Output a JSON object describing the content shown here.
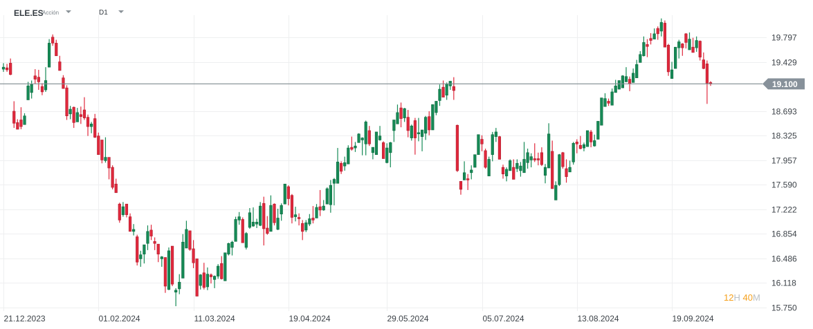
{
  "header": {
    "symbol": "ELE.ES",
    "instrument_type": "Acción",
    "timeframe": "D1"
  },
  "countdown": {
    "hours": "12",
    "hours_unit": "H",
    "minutes": "40",
    "minutes_unit": "M"
  },
  "colors": {
    "up": "#168a56",
    "up_border": "#0e6b40",
    "down": "#e0283c",
    "down_border": "#b01e2e",
    "price_line": "#7d8a8f",
    "price_tag": "#87919a",
    "countdown": "#f5a01c"
  },
  "chart_data": {
    "type": "candlestick",
    "symbol": "ELE.ES",
    "timeframe": "D1",
    "ylim": [
      15.75,
      20.1
    ],
    "y_ticks": [
      "19.797",
      "19.429",
      "18.693",
      "18.325",
      "17.957",
      "17.590",
      "17.222",
      "16.854",
      "16.486",
      "16.118",
      "15.750"
    ],
    "y_tick_values": [
      19.797,
      19.429,
      18.693,
      18.325,
      17.957,
      17.59,
      17.222,
      16.854,
      16.486,
      16.118,
      15.75
    ],
    "current_price": 19.1,
    "current_price_label": "19.100",
    "x_ticks": [
      {
        "label": "21.12.2023",
        "index": 0
      },
      {
        "label": "01.02.2024",
        "index": 27
      },
      {
        "label": "11.03.2024",
        "index": 54
      },
      {
        "label": "19.04.2024",
        "index": 81
      },
      {
        "label": "29.05.2024",
        "index": 109
      },
      {
        "label": "05.07.2024",
        "index": 136
      },
      {
        "label": "13.08.2024",
        "index": 163
      },
      {
        "label": "19.09.2024",
        "index": 190
      }
    ],
    "grid": true,
    "ohlc_fields": [
      "open",
      "high",
      "low",
      "close"
    ],
    "candles": [
      [
        19.32,
        19.41,
        19.28,
        19.35
      ],
      [
        19.34,
        19.4,
        19.28,
        19.31
      ],
      [
        19.41,
        19.48,
        19.23,
        19.24
      ],
      [
        18.69,
        18.84,
        18.44,
        18.51
      ],
      [
        18.52,
        18.57,
        18.42,
        18.42
      ],
      [
        18.56,
        18.75,
        18.42,
        18.46
      ],
      [
        18.49,
        18.66,
        18.49,
        18.62
      ],
      [
        18.86,
        19.13,
        18.86,
        19.07
      ],
      [
        18.97,
        19.15,
        18.88,
        19.09
      ],
      [
        19.22,
        19.32,
        19.1,
        19.17
      ],
      [
        19.2,
        19.31,
        19.01,
        19.13
      ],
      [
        19.06,
        19.11,
        18.93,
        18.98
      ],
      [
        19.01,
        19.35,
        18.98,
        19.15
      ],
      [
        19.35,
        19.77,
        19.35,
        19.71
      ],
      [
        19.8,
        19.84,
        19.67,
        19.71
      ],
      [
        19.71,
        19.76,
        19.52,
        19.52
      ],
      [
        19.43,
        19.52,
        19.3,
        19.3
      ],
      [
        19.19,
        19.23,
        19.03,
        19.03
      ],
      [
        19.04,
        19.08,
        18.56,
        18.62
      ],
      [
        18.65,
        18.77,
        18.57,
        18.72
      ],
      [
        18.75,
        18.76,
        18.44,
        18.52
      ],
      [
        18.53,
        18.74,
        18.53,
        18.67
      ],
      [
        18.64,
        18.76,
        18.5,
        18.61
      ],
      [
        18.71,
        18.9,
        18.56,
        18.59
      ],
      [
        18.6,
        18.64,
        18.32,
        18.46
      ],
      [
        18.46,
        18.53,
        18.36,
        18.5
      ],
      [
        18.58,
        18.65,
        18.29,
        18.3
      ],
      [
        18.32,
        18.37,
        18.04,
        18.04
      ],
      [
        18.26,
        18.26,
        17.91,
        17.96
      ],
      [
        17.95,
        18.3,
        17.92,
        18.0
      ],
      [
        18.0,
        18.0,
        17.67,
        17.84
      ],
      [
        17.85,
        17.88,
        17.52,
        17.55
      ],
      [
        17.6,
        17.68,
        17.47,
        17.47
      ],
      [
        17.3,
        17.32,
        17.02,
        17.06
      ],
      [
        17.14,
        17.33,
        17.11,
        17.26
      ],
      [
        17.3,
        17.3,
        17.1,
        17.14
      ],
      [
        17.11,
        17.16,
        16.89,
        16.89
      ],
      [
        16.89,
        17.0,
        16.83,
        16.92
      ],
      [
        16.81,
        16.84,
        16.38,
        16.43
      ],
      [
        16.48,
        16.6,
        16.36,
        16.54
      ],
      [
        16.55,
        16.69,
        16.41,
        16.69
      ],
      [
        16.71,
        16.98,
        16.61,
        16.89
      ],
      [
        16.91,
        16.99,
        16.76,
        16.82
      ],
      [
        16.74,
        16.8,
        16.61,
        16.71
      ],
      [
        16.7,
        16.7,
        16.43,
        16.55
      ],
      [
        16.48,
        16.52,
        16.36,
        16.51
      ],
      [
        16.5,
        16.5,
        15.97,
        16.07
      ],
      [
        16.02,
        16.65,
        16.01,
        16.6
      ],
      [
        16.67,
        16.67,
        16.07,
        16.1
      ],
      [
        15.98,
        16.04,
        15.77,
        16.01
      ],
      [
        16.03,
        16.25,
        15.95,
        16.13
      ],
      [
        16.19,
        16.85,
        16.19,
        16.73
      ],
      [
        16.64,
        17.05,
        16.64,
        16.92
      ],
      [
        16.9,
        16.9,
        16.6,
        16.62
      ],
      [
        16.63,
        16.76,
        16.34,
        16.42
      ],
      [
        16.48,
        16.48,
        15.92,
        15.92
      ],
      [
        16.08,
        16.25,
        16.02,
        16.24
      ],
      [
        16.27,
        16.42,
        16.02,
        16.05
      ],
      [
        16.06,
        16.35,
        16.01,
        16.25
      ],
      [
        16.24,
        16.26,
        16.11,
        16.21
      ],
      [
        16.17,
        16.23,
        16.04,
        16.22
      ],
      [
        16.22,
        16.4,
        16.18,
        16.37
      ],
      [
        16.41,
        16.52,
        16.17,
        16.18
      ],
      [
        16.15,
        16.57,
        16.15,
        16.57
      ],
      [
        16.55,
        16.72,
        16.53,
        16.71
      ],
      [
        16.65,
        16.75,
        16.53,
        16.73
      ],
      [
        16.74,
        17.11,
        16.74,
        17.07
      ],
      [
        17.06,
        17.18,
        16.99,
        17.11
      ],
      [
        17.07,
        17.1,
        16.72,
        16.72
      ],
      [
        16.65,
        16.88,
        16.62,
        16.86
      ],
      [
        16.95,
        17.24,
        16.93,
        17.17
      ],
      [
        16.97,
        17.25,
        16.96,
        17.03
      ],
      [
        17.0,
        17.08,
        16.94,
        17.03
      ],
      [
        16.98,
        17.33,
        16.97,
        17.27
      ],
      [
        17.31,
        17.41,
        16.68,
        16.93
      ],
      [
        16.94,
        17.12,
        16.84,
        16.86
      ],
      [
        16.89,
        17.43,
        16.89,
        17.28
      ],
      [
        17.3,
        17.31,
        16.98,
        17.02
      ],
      [
        16.92,
        17.23,
        16.91,
        17.09
      ],
      [
        17.15,
        17.31,
        17.05,
        17.28
      ],
      [
        17.3,
        17.6,
        17.3,
        17.6
      ],
      [
        17.56,
        17.58,
        17.28,
        17.38
      ],
      [
        17.43,
        17.45,
        17.01,
        17.1
      ],
      [
        17.11,
        17.26,
        17.04,
        17.14
      ],
      [
        17.1,
        17.16,
        16.98,
        17.08
      ],
      [
        17.01,
        17.06,
        16.76,
        16.89
      ],
      [
        16.91,
        17.06,
        16.88,
        17.02
      ],
      [
        17.0,
        17.15,
        16.97,
        17.08
      ],
      [
        17.09,
        17.27,
        17.01,
        17.06
      ],
      [
        17.09,
        17.3,
        17.09,
        17.25
      ],
      [
        17.26,
        17.51,
        17.12,
        17.21
      ],
      [
        17.21,
        17.36,
        17.2,
        17.27
      ],
      [
        17.3,
        17.55,
        17.3,
        17.53
      ],
      [
        17.29,
        17.66,
        17.17,
        17.58
      ],
      [
        17.61,
        17.69,
        17.28,
        17.67
      ],
      [
        17.61,
        18.14,
        17.61,
        17.93
      ],
      [
        17.91,
        17.94,
        17.75,
        17.79
      ],
      [
        17.87,
        18.01,
        17.8,
        17.92
      ],
      [
        17.9,
        18.18,
        17.9,
        18.14
      ],
      [
        18.15,
        18.31,
        18.1,
        18.12
      ],
      [
        18.14,
        18.23,
        18.08,
        18.17
      ],
      [
        18.22,
        18.36,
        18.22,
        18.35
      ],
      [
        18.26,
        18.3,
        18.03,
        18.29
      ],
      [
        18.2,
        18.55,
        18.03,
        18.53
      ],
      [
        18.4,
        18.47,
        18.17,
        18.2
      ],
      [
        18.07,
        18.15,
        17.97,
        18.15
      ],
      [
        18.04,
        18.38,
        18.04,
        18.38
      ],
      [
        18.26,
        18.47,
        18.25,
        18.32
      ],
      [
        18.22,
        18.24,
        17.98,
        17.98
      ],
      [
        17.92,
        18.21,
        17.91,
        18.14
      ],
      [
        18.07,
        18.23,
        17.85,
        18.22
      ],
      [
        18.4,
        18.56,
        18.23,
        18.56
      ],
      [
        18.5,
        18.79,
        18.5,
        18.67
      ],
      [
        18.74,
        18.82,
        18.45,
        18.58
      ],
      [
        18.59,
        18.74,
        18.53,
        18.73
      ],
      [
        18.6,
        18.71,
        18.3,
        18.4
      ],
      [
        18.29,
        18.49,
        18.25,
        18.47
      ],
      [
        18.55,
        18.59,
        18.04,
        18.29
      ],
      [
        18.35,
        18.59,
        18.24,
        18.37
      ],
      [
        18.31,
        18.41,
        18.09,
        18.41
      ],
      [
        18.36,
        18.62,
        18.26,
        18.6
      ],
      [
        18.61,
        18.69,
        18.33,
        18.41
      ],
      [
        18.41,
        18.79,
        18.41,
        18.79
      ],
      [
        18.67,
        18.84,
        18.63,
        18.84
      ],
      [
        18.85,
        19.09,
        18.77,
        19.02
      ],
      [
        19.05,
        19.15,
        18.9,
        18.9
      ],
      [
        18.93,
        19.12,
        18.86,
        19.1
      ],
      [
        19.07,
        19.14,
        19.01,
        19.14
      ],
      [
        19.06,
        19.2,
        18.86,
        19.0
      ],
      [
        18.48,
        18.49,
        17.78,
        17.8
      ],
      [
        17.64,
        17.64,
        17.44,
        17.52
      ],
      [
        17.66,
        17.94,
        17.66,
        17.77
      ],
      [
        17.68,
        17.75,
        17.51,
        17.66
      ],
      [
        17.77,
        17.88,
        17.67,
        17.81
      ],
      [
        17.85,
        18.04,
        17.85,
        18.04
      ],
      [
        18.04,
        18.34,
        18.04,
        18.34
      ],
      [
        18.27,
        18.33,
        18.09,
        18.2
      ],
      [
        18.1,
        18.13,
        17.83,
        17.85
      ],
      [
        17.72,
        18.01,
        17.72,
        17.97
      ],
      [
        18.04,
        18.38,
        17.94,
        18.34
      ],
      [
        18.31,
        18.44,
        18.23,
        18.38
      ],
      [
        18.31,
        18.32,
        17.97,
        17.97
      ],
      [
        17.85,
        17.89,
        17.68,
        17.75
      ],
      [
        17.72,
        17.85,
        17.64,
        17.82
      ],
      [
        17.8,
        17.97,
        17.8,
        17.95
      ],
      [
        17.85,
        17.97,
        17.67,
        17.67
      ],
      [
        17.83,
        17.97,
        17.78,
        17.91
      ],
      [
        17.8,
        17.93,
        17.71,
        17.87
      ],
      [
        17.77,
        18.23,
        17.77,
        17.97
      ],
      [
        17.92,
        18.13,
        17.83,
        18.07
      ],
      [
        17.96,
        18.06,
        17.85,
        18.01
      ],
      [
        17.98,
        18.21,
        17.93,
        17.96
      ],
      [
        17.98,
        18.07,
        17.88,
        17.96
      ],
      [
        18.07,
        18.15,
        17.87,
        17.89
      ],
      [
        17.73,
        17.9,
        17.61,
        17.85
      ],
      [
        17.84,
        18.51,
        17.84,
        18.35
      ],
      [
        18.09,
        18.25,
        17.53,
        17.53
      ],
      [
        17.36,
        17.64,
        17.36,
        17.58
      ],
      [
        17.59,
        18.05,
        17.57,
        18.04
      ],
      [
        18.07,
        18.08,
        17.83,
        17.86
      ],
      [
        17.83,
        17.97,
        17.62,
        17.71
      ],
      [
        17.78,
        17.95,
        17.78,
        17.85
      ],
      [
        17.93,
        18.23,
        17.89,
        18.21
      ],
      [
        18.23,
        18.27,
        18.06,
        18.2
      ],
      [
        18.18,
        18.32,
        18.12,
        18.13
      ],
      [
        18.14,
        18.22,
        18.09,
        18.19
      ],
      [
        18.16,
        18.4,
        18.16,
        18.4
      ],
      [
        18.38,
        18.41,
        18.15,
        18.23
      ],
      [
        18.17,
        18.34,
        18.16,
        18.25
      ],
      [
        18.27,
        18.54,
        18.27,
        18.54
      ],
      [
        18.48,
        18.89,
        18.48,
        18.89
      ],
      [
        18.76,
        18.96,
        18.76,
        18.88
      ],
      [
        18.84,
        18.88,
        18.77,
        18.81
      ],
      [
        18.78,
        19.03,
        18.78,
        18.98
      ],
      [
        18.97,
        19.16,
        18.97,
        19.07
      ],
      [
        19.02,
        19.15,
        19.02,
        19.15
      ],
      [
        19.04,
        19.23,
        19.04,
        19.22
      ],
      [
        19.13,
        19.35,
        19.13,
        19.21
      ],
      [
        19.17,
        19.21,
        18.99,
        19.1
      ],
      [
        19.12,
        19.33,
        19.12,
        19.26
      ],
      [
        19.19,
        19.46,
        19.19,
        19.39
      ],
      [
        19.42,
        19.59,
        19.42,
        19.54
      ],
      [
        19.52,
        19.81,
        19.51,
        19.72
      ],
      [
        19.69,
        19.77,
        19.5,
        19.66
      ],
      [
        19.78,
        19.86,
        19.69,
        19.75
      ],
      [
        19.77,
        19.93,
        19.77,
        19.85
      ],
      [
        19.93,
        19.96,
        19.76,
        19.85
      ],
      [
        19.89,
        20.08,
        19.81,
        20.02
      ],
      [
        20.01,
        20.05,
        19.65,
        19.65
      ],
      [
        19.68,
        19.7,
        19.22,
        19.28
      ],
      [
        19.18,
        19.43,
        19.18,
        19.31
      ],
      [
        19.33,
        19.65,
        19.33,
        19.65
      ],
      [
        19.64,
        19.76,
        19.48,
        19.73
      ],
      [
        19.7,
        19.71,
        19.52,
        19.64
      ],
      [
        19.85,
        19.86,
        19.63,
        19.72
      ],
      [
        19.61,
        19.87,
        19.61,
        19.77
      ],
      [
        19.65,
        19.79,
        19.57,
        19.57
      ],
      [
        19.64,
        19.81,
        19.58,
        19.75
      ],
      [
        19.74,
        19.75,
        19.45,
        19.5
      ],
      [
        19.46,
        19.57,
        19.32,
        19.33
      ],
      [
        19.4,
        19.45,
        18.8,
        19.11
      ],
      [
        19.12,
        19.14,
        19.07,
        19.1
      ]
    ]
  }
}
